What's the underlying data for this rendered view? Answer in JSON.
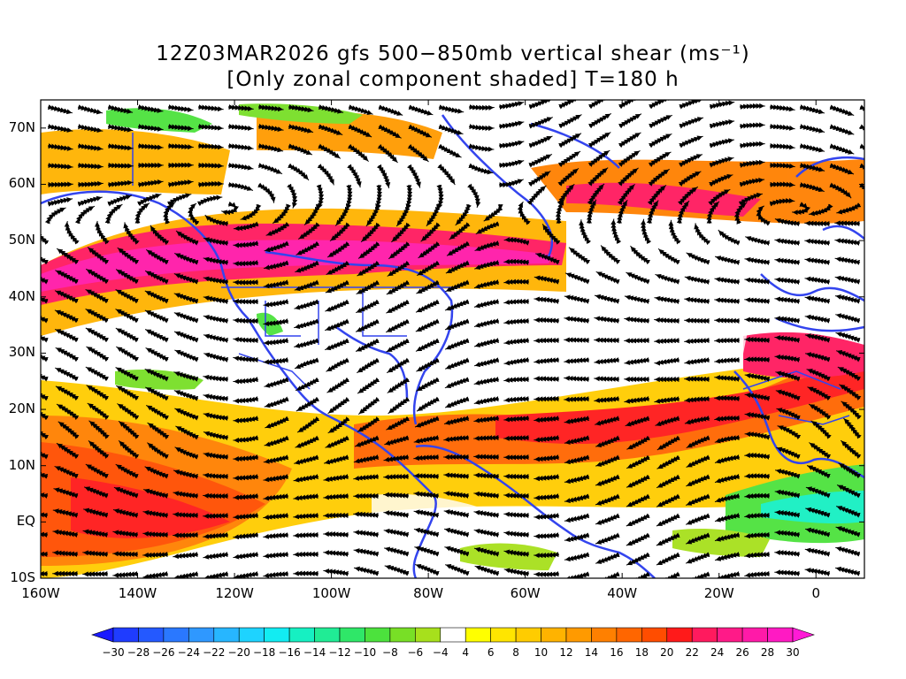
{
  "title": {
    "line1": "12Z03MAR2026 gfs 500−850mb vertical shear (ms⁻¹)",
    "line2": "[Only zonal component shaded] T=180 h"
  },
  "map": {
    "lat_labels": [
      "70N",
      "60N",
      "50N",
      "40N",
      "30N",
      "20N",
      "10N",
      "EQ",
      "10S"
    ],
    "lat_values": [
      70,
      60,
      50,
      40,
      30,
      20,
      10,
      0,
      -10
    ],
    "lon_labels": [
      "160W",
      "140W",
      "120W",
      "100W",
      "80W",
      "60W",
      "40W",
      "20W",
      "0"
    ],
    "lon_values": [
      -160,
      -140,
      -120,
      -100,
      -80,
      -60,
      -40,
      -20,
      0
    ],
    "lon_range": [
      -160,
      10
    ],
    "lat_range": [
      -10,
      75
    ],
    "coastline_color": "#3344ee",
    "streamline_color": "#000000"
  },
  "colorbar": {
    "labels": [
      "−30",
      "−28",
      "−26",
      "−24",
      "−22",
      "−20",
      "−18",
      "−16",
      "−14",
      "−12",
      "−10",
      "−8",
      "−6",
      "−4",
      "4",
      "6",
      "8",
      "10",
      "12",
      "14",
      "16",
      "18",
      "20",
      "22",
      "24",
      "26",
      "28",
      "30"
    ],
    "colors": [
      "#1a1aff",
      "#1f3cff",
      "#2459ff",
      "#2a78ff",
      "#2f98ff",
      "#27b6ff",
      "#1ed3ff",
      "#12ecf2",
      "#16f0c2",
      "#20ec95",
      "#2fe768",
      "#4ce23d",
      "#78df26",
      "#a7e01c",
      "#ffffff",
      "#ffff00",
      "#ffe500",
      "#ffcc00",
      "#ffb300",
      "#ff9a00",
      "#ff8000",
      "#ff6600",
      "#ff4d00",
      "#ff1a1a",
      "#ff1a5e",
      "#ff1a88",
      "#ff1aa8",
      "#ff1ac3",
      "#ff1ad6"
    ]
  }
}
